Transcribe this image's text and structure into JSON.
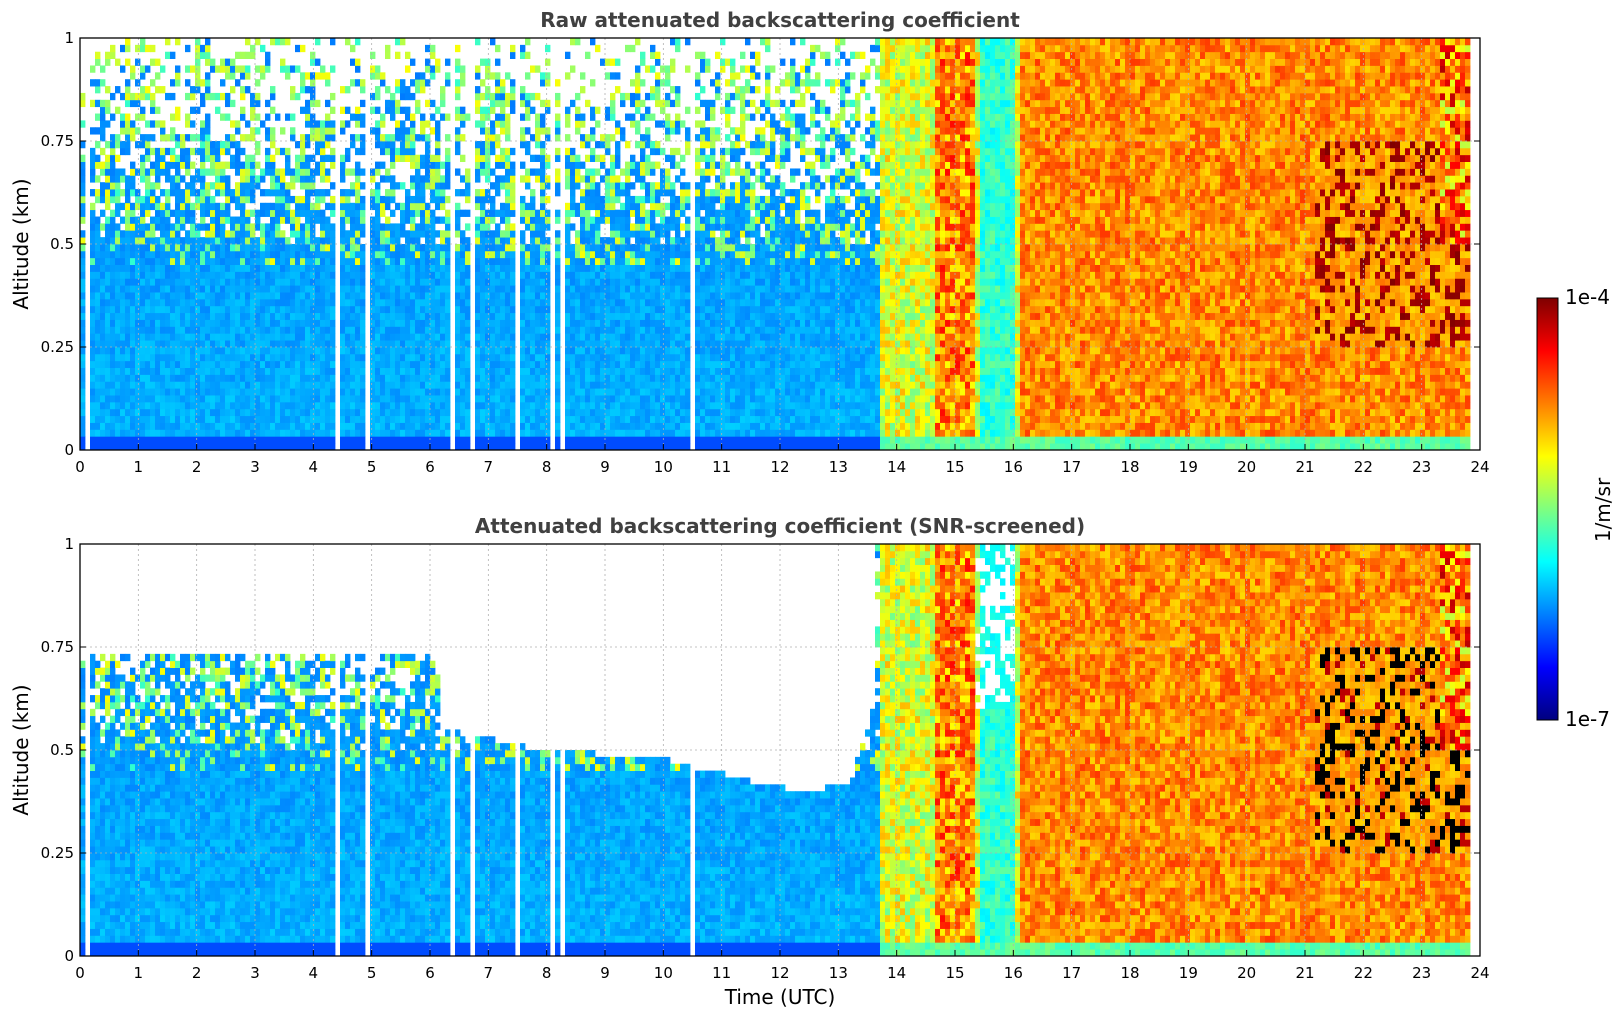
{
  "chart_data": [
    {
      "type": "heatmap",
      "title": "Raw attenuated backscattering coefficient",
      "xlabel": "",
      "ylabel": "Altitude (km)",
      "xlim": [
        0,
        24
      ],
      "ylim": [
        0,
        1
      ],
      "xticks": [
        "0",
        "1",
        "2",
        "3",
        "4",
        "5",
        "6",
        "7",
        "8",
        "9",
        "10",
        "11",
        "12",
        "13",
        "14",
        "15",
        "16",
        "17",
        "18",
        "19",
        "20",
        "21",
        "22",
        "23",
        "24"
      ],
      "yticks": [
        "0",
        "0.25",
        "0.5",
        "0.75",
        "1"
      ],
      "grid": true,
      "color_scale": "log jet",
      "clim": [
        1e-07,
        0.0001
      ],
      "screening": false,
      "regimes": [
        {
          "x": [
            0,
            13.7
          ],
          "level": "low (~1e-6), noisy above 0.5 km"
        },
        {
          "x": [
            13.7,
            16.1
          ],
          "level": "mixed (~1e-5 to 3e-5)"
        },
        {
          "x": [
            16.1,
            23.8
          ],
          "level": "high (~3e-5 to 6e-5)"
        },
        {
          "x": [
            21.2,
            23.8
          ],
          "y": [
            0.25,
            0.75
          ],
          "level": "max (~1e-4)"
        }
      ]
    },
    {
      "type": "heatmap",
      "title": "Attenuated backscattering coefficient (SNR-screened)",
      "xlabel": "Time (UTC)",
      "ylabel": "Altitude (km)",
      "xlim": [
        0,
        24
      ],
      "ylim": [
        0,
        1
      ],
      "xticks": [
        "0",
        "1",
        "2",
        "3",
        "4",
        "5",
        "6",
        "7",
        "8",
        "9",
        "10",
        "11",
        "12",
        "13",
        "14",
        "15",
        "16",
        "17",
        "18",
        "19",
        "20",
        "21",
        "22",
        "23",
        "24"
      ],
      "yticks": [
        "0",
        "0.25",
        "0.5",
        "0.75",
        "1"
      ],
      "grid": true,
      "color_scale": "log jet",
      "clim": [
        1e-07,
        0.0001
      ],
      "screening": true,
      "screened_top_km": [
        {
          "x": 0,
          "y": 0.73
        },
        {
          "x": 6.1,
          "y": 0.73
        },
        {
          "x": 6.2,
          "y": 0.55
        },
        {
          "x": 8,
          "y": 0.5
        },
        {
          "x": 10,
          "y": 0.48
        },
        {
          "x": 11.6,
          "y": 0.42
        },
        {
          "x": 12.5,
          "y": 0.4
        },
        {
          "x": 13.2,
          "y": 0.42
        },
        {
          "x": 13.6,
          "y": 0.6
        }
      ]
    }
  ],
  "colorbar": {
    "label": "1/m/sr",
    "max_label": "1e-4",
    "min_label": "1e-7"
  },
  "colors": {
    "jet": [
      "#00007f",
      "#0000ff",
      "#007fff",
      "#00ffff",
      "#7fff7f",
      "#ffff00",
      "#ff7f00",
      "#ff0000",
      "#7f0000"
    ]
  }
}
